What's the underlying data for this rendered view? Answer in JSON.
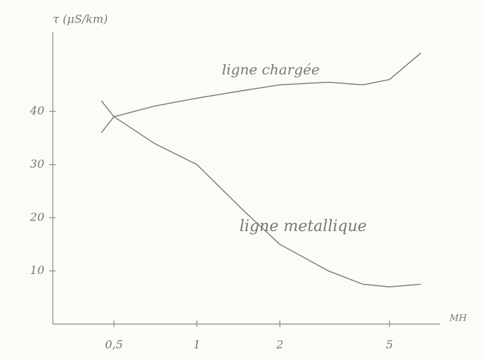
{
  "chart_data": {
    "type": "line",
    "y_label": "τ (μS/km)",
    "x_label": "MH",
    "x": [
      0.45,
      0.5,
      0.7,
      1,
      1.5,
      2,
      3,
      4,
      5,
      6.5
    ],
    "series": [
      {
        "name": "ligne chargée",
        "color": "#777777",
        "values": [
          36,
          39,
          41,
          42.5,
          44,
          45,
          45.5,
          45,
          46,
          51
        ]
      },
      {
        "name": "ligne metallique",
        "color": "#777777",
        "values": [
          42,
          39,
          34,
          30,
          21,
          15,
          10,
          7.5,
          7,
          7.5
        ]
      }
    ],
    "xlim": [
      0.3,
      7
    ],
    "xticks": [
      {
        "value": 0.5,
        "label": "0,5"
      },
      1,
      2,
      5
    ],
    "log_x": true,
    "ylim": [
      0,
      55
    ],
    "yticks": [
      10,
      20,
      30,
      40
    ],
    "grid": false
  }
}
